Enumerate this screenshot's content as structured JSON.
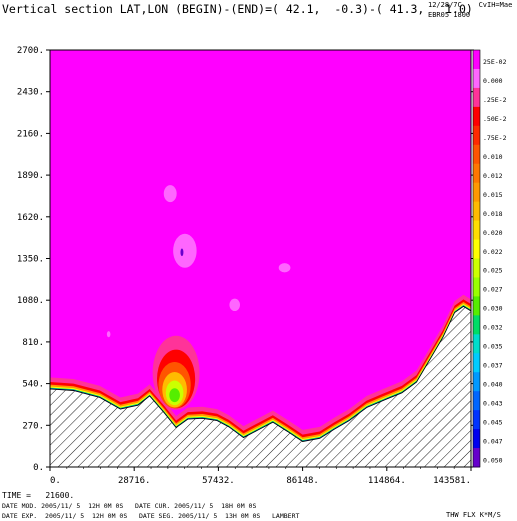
{
  "header": {
    "title": "Vertical section LAT,LON (BEGIN)-(END)=( 42.1,  -0.3)-( 41.3,   1.0)",
    "corner_line1": "12/28/7C    CvIH=Mae",
    "corner_line2": "EBR05 1800"
  },
  "footer": {
    "time": "TIME =   21600.",
    "info_line1": "DATE MOD. 2005/11/ 5  12H 0M 0S   DATE CUR. 2005/11/ 5  18H 0M 0S",
    "info_line2": "DATE EXP.  2005/11/ 5  12H 0M 0S   DATE SEG. 2005/11/ 5  13H 0M 0S   LAMBERT",
    "units": "THW FLX K*M/S"
  },
  "colors": {
    "background_field": "#ff00ff",
    "terrain_hatch": "#000000"
  },
  "chart_data": {
    "type": "heatmap",
    "title": "Vertical section LAT,LON (BEGIN)-(END)=( 42.1,  -0.3)-( 41.3,   1.0)",
    "xlim": [
      0,
      143581
    ],
    "ylim": [
      0,
      2700
    ],
    "x_ticks": [
      "0.",
      "28716.",
      "57432.",
      "86148.",
      "114864.",
      "143581."
    ],
    "x_tick_values": [
      0,
      28716,
      57432,
      86148,
      114864,
      143581
    ],
    "y_ticks": [
      "0.",
      "270.",
      "540.",
      "810.",
      "1080.",
      "1350.",
      "1620.",
      "1890.",
      "2160.",
      "2430.",
      "2700."
    ],
    "y_tick_values": [
      0,
      270,
      540,
      810,
      1080,
      1350,
      1620,
      1890,
      2160,
      2430,
      2700
    ],
    "colorbar": {
      "labels": [
        "25E-02",
        "0.000",
        ".25E-2",
        ".50E-2",
        ".75E-2",
        "0.010",
        "0.012",
        "0.015",
        "0.018",
        "0.020",
        "0.022",
        "0.025",
        "0.027",
        "0.030",
        "0.032",
        "0.035",
        "0.037",
        "0.040",
        "0.043",
        "0.045",
        "0.047",
        "0.050"
      ],
      "colors": [
        "#ff00ff",
        "#ff66ff",
        "#ff3399",
        "#ff0000",
        "#ff2a00",
        "#ff5500",
        "#ff7700",
        "#ff9900",
        "#ffbb00",
        "#ffdd00",
        "#ffff00",
        "#ccff00",
        "#99ff00",
        "#55ee00",
        "#00dd66",
        "#00ddcc",
        "#00ccff",
        "#0099ff",
        "#0066ff",
        "#0033ff",
        "#0000ee",
        "#6600cc"
      ]
    },
    "terrain": {
      "x": [
        0,
        8000,
        17000,
        24000,
        30000,
        34000,
        39000,
        43000,
        47000,
        52000,
        57000,
        61000,
        66000,
        71000,
        76000,
        81000,
        86148,
        92000,
        97000,
        102000,
        108000,
        114864,
        120000,
        125000,
        130000,
        134000,
        138000,
        141000,
        143581
      ],
      "y": [
        505,
        495,
        450,
        375,
        400,
        460,
        350,
        255,
        310,
        315,
        300,
        260,
        190,
        240,
        290,
        230,
        165,
        185,
        245,
        300,
        385,
        440,
        480,
        550,
        710,
        840,
        1000,
        1040,
        1010
      ]
    }
  }
}
